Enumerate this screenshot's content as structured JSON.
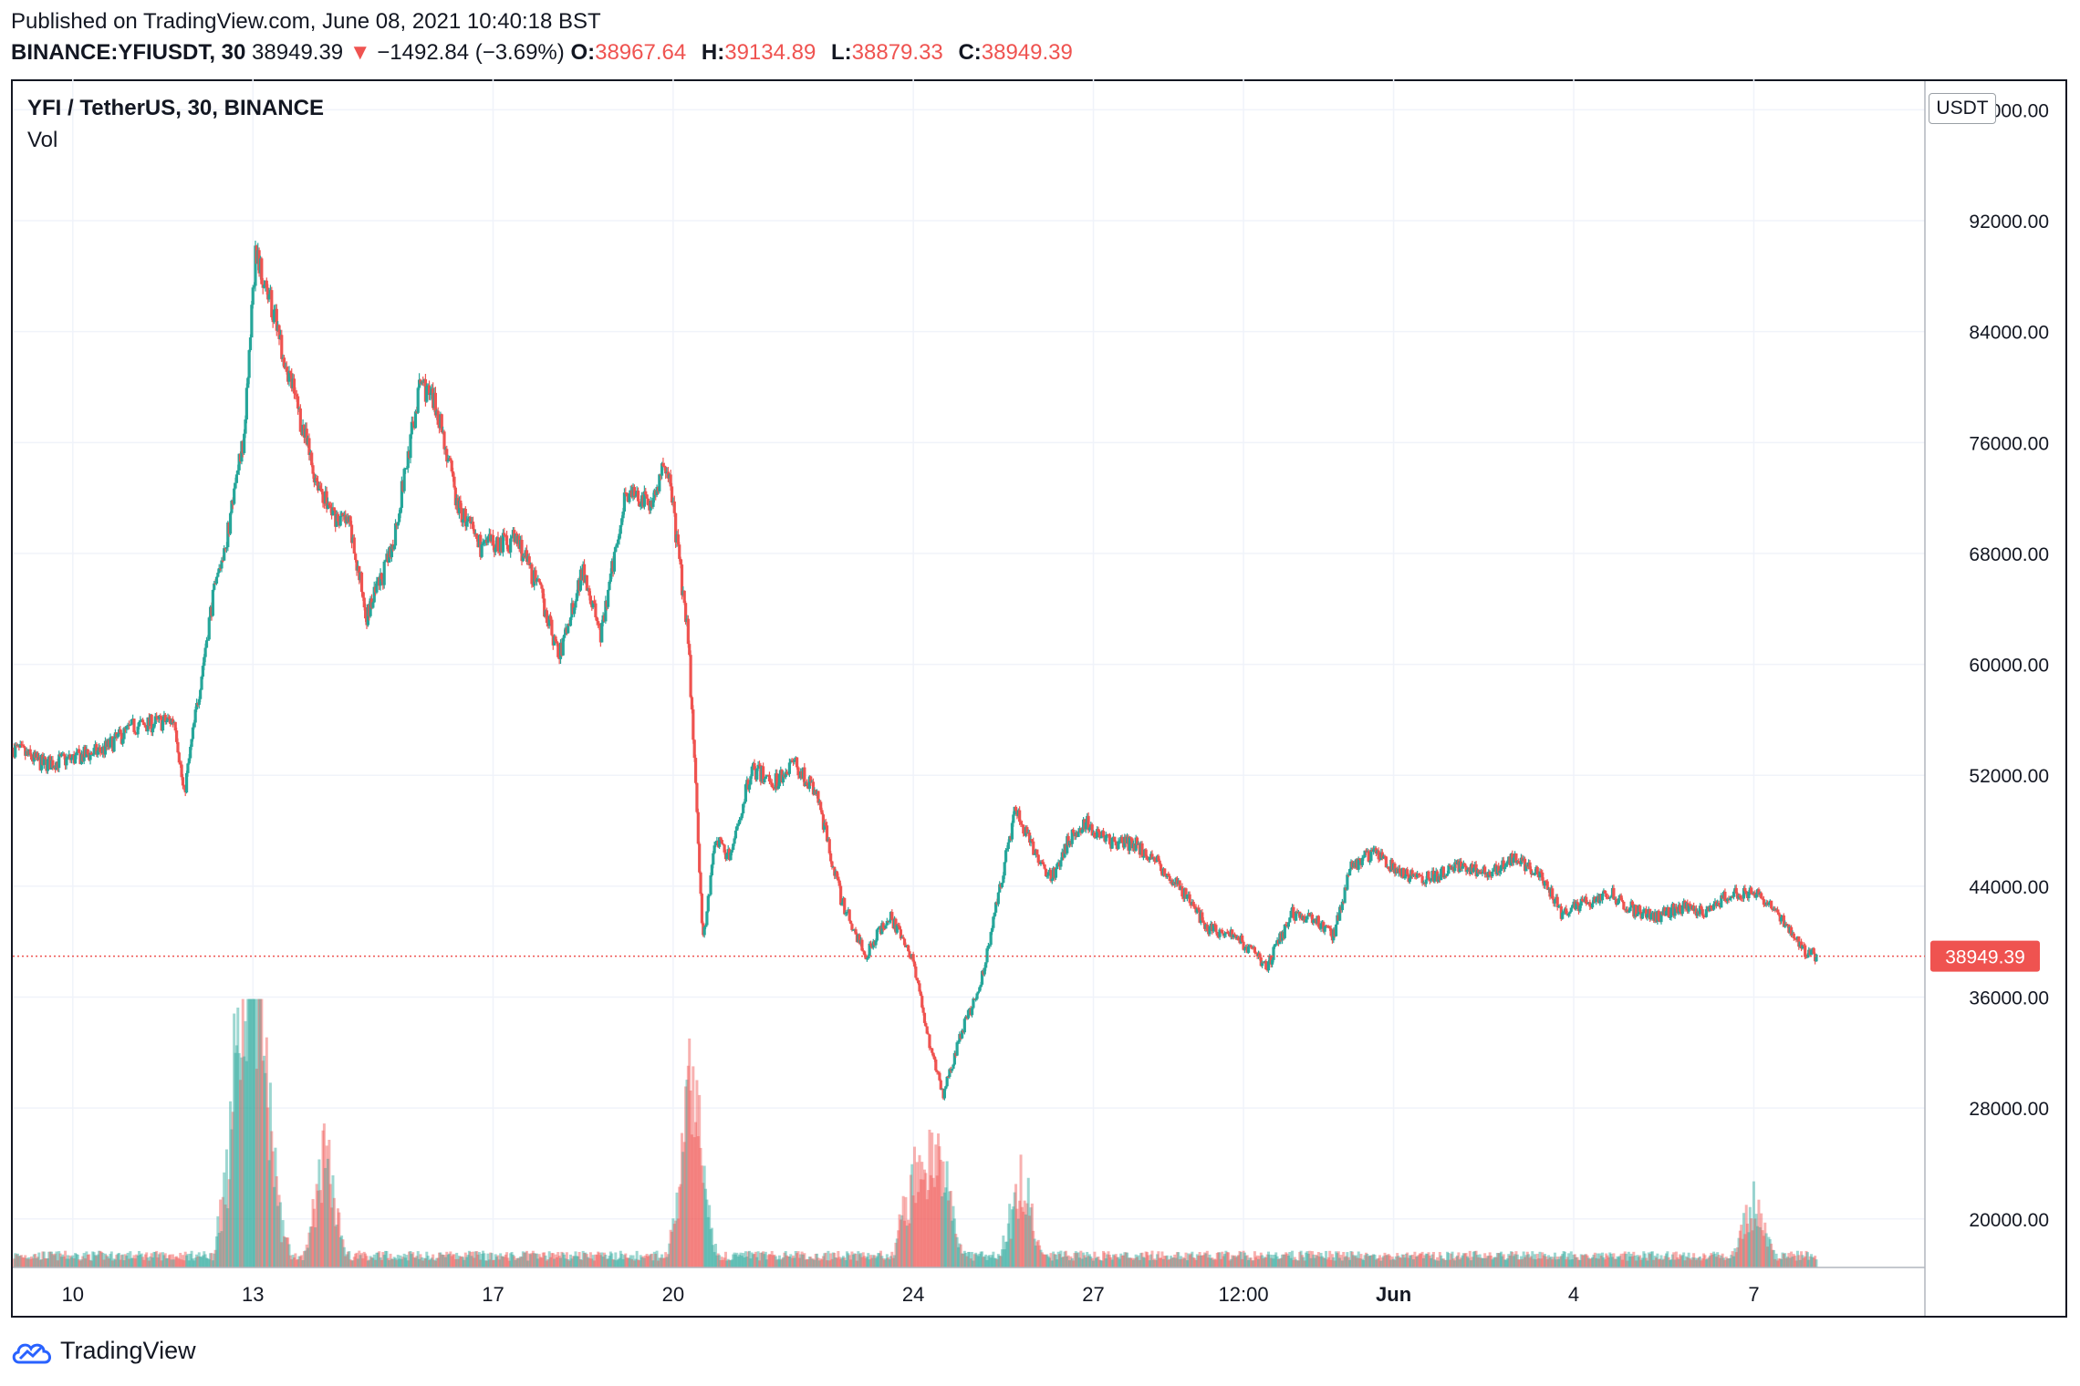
{
  "header": {
    "published": "Published on TradingView.com, June 08, 2021 10:40:18 BST",
    "symbol": "BINANCE:YFIUSDT, 30",
    "last": "38949.39",
    "change_arrow": "▼",
    "change": "−1492.84 (−3.69%)",
    "open_label": "O:",
    "open": "38967.64",
    "high_label": "H:",
    "high": "39134.89",
    "low_label": "L:",
    "low": "38879.33",
    "close_label": "C:",
    "close": "38949.39"
  },
  "pane": {
    "title": "YFI / TetherUS, 30, BINANCE",
    "volume_label": "Vol",
    "currency": "USDT"
  },
  "footer": {
    "brand": "TradingView",
    "logo_icon": "tradingview-cloud-icon"
  },
  "colors": {
    "up": "#26a69a",
    "down": "#ef5350",
    "grid": "#f0f3fa",
    "text": "#131722"
  },
  "chart_data": {
    "type": "candlestick",
    "interval": "30",
    "y_ticks": [
      "20000.00",
      "28000.00",
      "36000.00",
      "44000.00",
      "52000.00",
      "60000.00",
      "68000.00",
      "76000.00",
      "84000.00",
      "92000.00",
      "100000.00"
    ],
    "y_tick_values": [
      20000,
      28000,
      36000,
      44000,
      52000,
      60000,
      68000,
      76000,
      84000,
      92000,
      100000
    ],
    "ylim": [
      16500,
      102000
    ],
    "x_ticks": [
      "10",
      "13",
      "17",
      "20",
      "24",
      "27",
      "12:00",
      "Jun",
      "4",
      "7"
    ],
    "x_tick_days": [
      1,
      4,
      8,
      11,
      15,
      18,
      20.5,
      23,
      26,
      29
    ],
    "xlim": [
      0,
      31.85
    ],
    "last_price": 38949.39,
    "last_price_label": "38949.39",
    "price_path": [
      {
        "day": 0.0,
        "price": 54000
      },
      {
        "day": 0.5,
        "price": 52800
      },
      {
        "day": 1.0,
        "price": 53200
      },
      {
        "day": 1.5,
        "price": 53800
      },
      {
        "day": 2.0,
        "price": 55500
      },
      {
        "day": 2.7,
        "price": 56000
      },
      {
        "day": 2.85,
        "price": 50500
      },
      {
        "day": 3.3,
        "price": 64000
      },
      {
        "day": 3.6,
        "price": 70000
      },
      {
        "day": 3.85,
        "price": 76500
      },
      {
        "day": 4.05,
        "price": 90000
      },
      {
        "day": 4.3,
        "price": 86000
      },
      {
        "day": 4.6,
        "price": 81000
      },
      {
        "day": 5.0,
        "price": 74000
      },
      {
        "day": 5.3,
        "price": 71000
      },
      {
        "day": 5.6,
        "price": 70000
      },
      {
        "day": 5.9,
        "price": 63500
      },
      {
        "day": 6.3,
        "price": 68000
      },
      {
        "day": 6.8,
        "price": 80500
      },
      {
        "day": 7.1,
        "price": 78000
      },
      {
        "day": 7.4,
        "price": 71500
      },
      {
        "day": 7.8,
        "price": 68500
      },
      {
        "day": 8.4,
        "price": 69000
      },
      {
        "day": 8.8,
        "price": 65000
      },
      {
        "day": 9.1,
        "price": 60500
      },
      {
        "day": 9.5,
        "price": 67000
      },
      {
        "day": 9.8,
        "price": 62000
      },
      {
        "day": 10.2,
        "price": 72500
      },
      {
        "day": 10.6,
        "price": 71500
      },
      {
        "day": 10.9,
        "price": 74500
      },
      {
        "day": 11.25,
        "price": 62000
      },
      {
        "day": 11.5,
        "price": 40000
      },
      {
        "day": 11.7,
        "price": 47500
      },
      {
        "day": 11.95,
        "price": 46000
      },
      {
        "day": 12.3,
        "price": 52500
      },
      {
        "day": 12.7,
        "price": 51500
      },
      {
        "day": 13.0,
        "price": 53000
      },
      {
        "day": 13.4,
        "price": 50500
      },
      {
        "day": 13.8,
        "price": 43000
      },
      {
        "day": 14.2,
        "price": 39000
      },
      {
        "day": 14.6,
        "price": 42000
      },
      {
        "day": 15.0,
        "price": 38500
      },
      {
        "day": 15.3,
        "price": 32000
      },
      {
        "day": 15.5,
        "price": 29000
      },
      {
        "day": 15.8,
        "price": 33500
      },
      {
        "day": 16.1,
        "price": 36500
      },
      {
        "day": 16.4,
        "price": 43000
      },
      {
        "day": 16.7,
        "price": 49500
      },
      {
        "day": 17.0,
        "price": 46500
      },
      {
        "day": 17.3,
        "price": 44500
      },
      {
        "day": 17.6,
        "price": 47500
      },
      {
        "day": 17.9,
        "price": 48500
      },
      {
        "day": 18.3,
        "price": 47000
      },
      {
        "day": 18.7,
        "price": 47000
      },
      {
        "day": 19.1,
        "price": 45500
      },
      {
        "day": 19.5,
        "price": 43500
      },
      {
        "day": 19.9,
        "price": 41000
      },
      {
        "day": 20.3,
        "price": 40500
      },
      {
        "day": 20.6,
        "price": 39500
      },
      {
        "day": 20.9,
        "price": 38200
      },
      {
        "day": 21.3,
        "price": 42000
      },
      {
        "day": 21.7,
        "price": 41500
      },
      {
        "day": 22.0,
        "price": 40500
      },
      {
        "day": 22.3,
        "price": 45500
      },
      {
        "day": 22.7,
        "price": 46500
      },
      {
        "day": 23.1,
        "price": 45000
      },
      {
        "day": 23.6,
        "price": 44500
      },
      {
        "day": 24.1,
        "price": 45500
      },
      {
        "day": 24.6,
        "price": 45000
      },
      {
        "day": 25.0,
        "price": 46000
      },
      {
        "day": 25.5,
        "price": 44500
      },
      {
        "day": 25.8,
        "price": 42000
      },
      {
        "day": 26.2,
        "price": 42800
      },
      {
        "day": 26.6,
        "price": 43500
      },
      {
        "day": 27.0,
        "price": 42300
      },
      {
        "day": 27.4,
        "price": 41800
      },
      {
        "day": 27.8,
        "price": 42500
      },
      {
        "day": 28.2,
        "price": 42200
      },
      {
        "day": 28.6,
        "price": 43500
      },
      {
        "day": 29.0,
        "price": 43600
      },
      {
        "day": 29.3,
        "price": 42800
      },
      {
        "day": 29.6,
        "price": 40800
      },
      {
        "day": 29.85,
        "price": 39300
      },
      {
        "day": 30.05,
        "price": 38950
      }
    ],
    "volume_spikes": [
      {
        "day": 3.7,
        "volume": 2.2
      },
      {
        "day": 3.85,
        "volume": 1.4
      },
      {
        "day": 4.0,
        "volume": 3.0
      },
      {
        "day": 4.1,
        "volume": 2.1
      },
      {
        "day": 4.3,
        "volume": 1.3
      },
      {
        "day": 5.2,
        "volume": 1.7
      },
      {
        "day": 11.25,
        "volume": 1.9
      },
      {
        "day": 11.4,
        "volume": 1.6
      },
      {
        "day": 15.0,
        "volume": 1.5
      },
      {
        "day": 15.3,
        "volume": 1.1
      },
      {
        "day": 15.5,
        "volume": 1.2
      },
      {
        "day": 16.8,
        "volume": 1.4
      },
      {
        "day": 29.0,
        "volume": 1.0
      }
    ]
  }
}
